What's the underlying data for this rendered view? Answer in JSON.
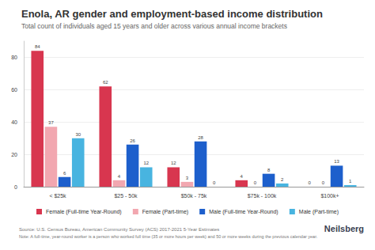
{
  "chart_data": {
    "type": "bar",
    "title": "Enola, AR gender and employment-based income distribution",
    "subtitle": "Total count of individuals aged 15 years and older across various annual income brackets",
    "categories": [
      "< $25k",
      "$25 - 50k",
      "$50k - 75k",
      "$75k - 100k",
      "$100k+"
    ],
    "series": [
      {
        "name": "Female (Full-time Year-Round)",
        "color": "#d8364f",
        "values": [
          84,
          62,
          12,
          4,
          0
        ]
      },
      {
        "name": "Female (Part-time)",
        "color": "#f2a7b0",
        "values": [
          37,
          4,
          3,
          0,
          0
        ]
      },
      {
        "name": "Male (Full-time Year-Round)",
        "color": "#1d5fcc",
        "values": [
          6,
          26,
          28,
          8,
          13
        ]
      },
      {
        "name": "Male (Part-time)",
        "color": "#48b4e0",
        "values": [
          30,
          12,
          0,
          2,
          1
        ]
      }
    ],
    "ylim": [
      0,
      90
    ],
    "yticks": [
      0,
      20,
      40,
      60,
      80
    ],
    "grid": true,
    "legend": "bottom",
    "data_labels": true,
    "source": "Source: U.S. Census Bureau, American Community Survey (ACS) 2017-2021 5-Year Estimates",
    "note": "Note: A full-time, year-round worker is a person who worked full time (35 or more hours per week) and 50 or more weeks during the previous calendar year.",
    "brand": "Neilsberg"
  }
}
